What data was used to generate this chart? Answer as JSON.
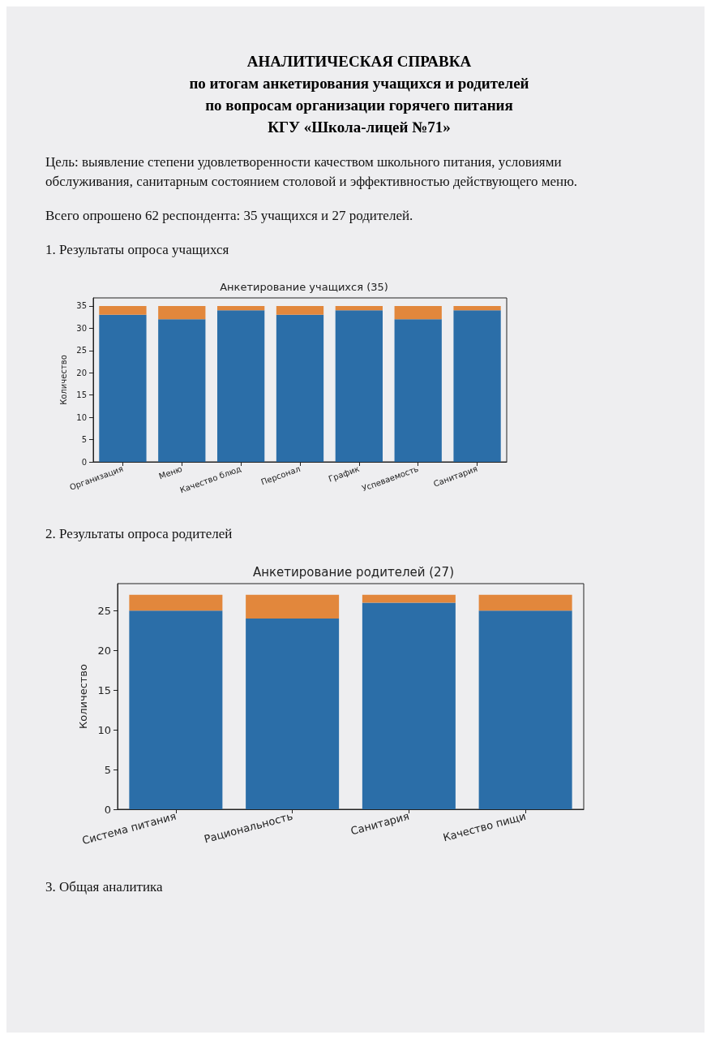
{
  "chart_data": [
    {
      "type": "bar",
      "title": "Анкетирование учащихся (35)",
      "ylabel": "Количество",
      "categories": [
        "Организация",
        "Меню",
        "Качество блюд",
        "Персонал",
        "График",
        "Успеваемость",
        "Санитария"
      ],
      "series": [
        {
          "color": "#2b6ea8",
          "values": [
            33,
            32,
            34,
            33,
            34,
            32,
            34
          ]
        },
        {
          "color": "#e2873c",
          "values": [
            2,
            3,
            1,
            2,
            1,
            3,
            1
          ]
        }
      ],
      "stacked": true,
      "ylim": [
        0,
        36.8
      ],
      "yticks": [
        0,
        5,
        10,
        15,
        20,
        25,
        30,
        35
      ],
      "annotations": [
        "АНАЛИТИЧЕСКАЯ СПРАВКА\nпо итогам анкетирования учащихся и родителей\nпо вопросам организации горячего питания\nКГУ «Школа-лицей №71»",
        "Цель: выявление степени удовлетворенности качеством школьного питания, условиями обслуживания, санитарным состоянием столовой и эффективностью действующего меню.",
        "Всего опрошено 62 респондента: 35 учащихся и 27 родителей.",
        "1. Результаты опроса учащихся"
      ]
    },
    {
      "type": "bar",
      "title": "Анкетирование родителей (27)",
      "ylabel": "Количество",
      "categories": [
        "Система питания",
        "Рациональность",
        "Санитария",
        "Качество пищи"
      ],
      "series": [
        {
          "color": "#2b6ea8",
          "values": [
            25,
            24,
            26,
            25
          ]
        },
        {
          "color": "#e2873c",
          "values": [
            2,
            3,
            1,
            2
          ]
        }
      ],
      "stacked": true,
      "ylim": [
        0,
        28.4
      ],
      "yticks": [
        0,
        5,
        10,
        15,
        20,
        25
      ],
      "annotations": [
        "2. Результаты опроса родителей",
        "3. Общая аналитика"
      ]
    }
  ]
}
